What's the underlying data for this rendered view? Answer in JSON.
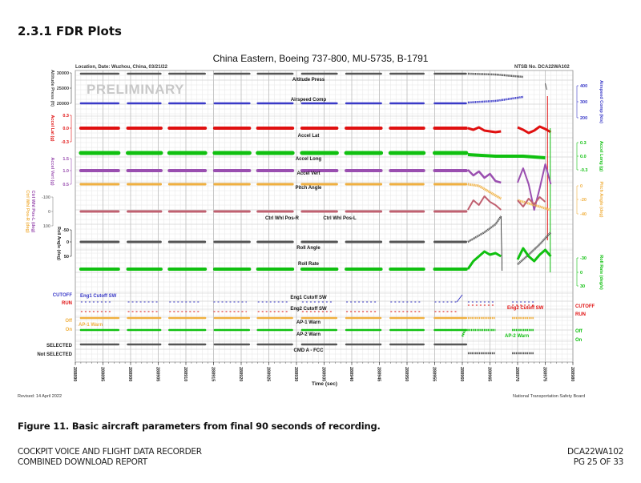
{
  "page": {
    "section_title": "2.3.1  FDR Plots",
    "chart_title": "China Eastern, Boeing 737-800, MU-5735, B-1791",
    "location_date": "Location, Date: Wuzhou, China, 03/21/22",
    "ntsb_number": "NTSB No. DCA22WA102",
    "watermark": "PRELIMINARY",
    "revised": "Revised: 14 April 2022",
    "agency": "National Transportation Safety Board",
    "figure_caption": "Figure 11. Basic aircraft parameters from final 90 seconds of recording.",
    "footer_left_1": "COCKPIT VOICE AND FLIGHT DATA RECORDER",
    "footer_left_2": "COMBINED DOWNLOAD REPORT",
    "footer_right_1": "DCA22WA102",
    "footer_right_2": "PG 25 OF 33"
  },
  "chart_data": {
    "type": "line",
    "title": "China Eastern, Boeing 737-800, MU-5735, B-1791",
    "xlabel": "Time (sec)",
    "xlim": [
      288890,
      288980
    ],
    "x_ticks": [
      288890,
      288895,
      288900,
      288905,
      288910,
      288915,
      288920,
      288925,
      288930,
      288935,
      288940,
      288945,
      288950,
      288955,
      288960,
      288965,
      288970,
      288975,
      288980
    ],
    "grid": true,
    "series": [
      {
        "name": "Altitude Press",
        "axis_label": "Altitude Press (ft)",
        "color": "#555555",
        "ticks": [
          20000,
          25000,
          30000
        ],
        "approx": "~29100 ft steady until 288955, gradual descent from ~288961, sharp drop near 288975"
      },
      {
        "name": "Airspeed Comp",
        "axis_label": "Airspeed Comp (kts)",
        "color": "#3a3ac8",
        "ticks": [
          200,
          300,
          400
        ],
        "approx": "~270 kts steady, rising to ~320 kts by 288971, ~400 kts near 288975"
      },
      {
        "name": "Accel Lat",
        "axis_label": "Accel Lat (g)",
        "color": "#e01010",
        "ticks": [
          -0.3,
          0.0,
          0.3
        ],
        "approx": "0.0 g steady, small oscillations after 288960"
      },
      {
        "name": "Accel Long",
        "axis_label": "Accel Long (g)",
        "color": "#10c010",
        "ticks": [
          -0.3,
          0.0,
          0.3
        ],
        "approx": "~0.0 g steady"
      },
      {
        "name": "Accel Vert",
        "axis_label": "Accel Vert (g)",
        "color": "#9a4fb0",
        "ticks": [
          0.5,
          1.0,
          1.5
        ],
        "approx": "1.0 g steady, large excursions after 288960"
      },
      {
        "name": "Pitch Angle",
        "axis_label": "Pitch Angle (deg)",
        "color": "#f0b040",
        "ticks": [
          -40,
          -20,
          0
        ],
        "approx": "~2 deg steady, decreasing to ~-30 deg by 288973"
      },
      {
        "name": "Ctrl Whl Pos-R",
        "axis_label": "Ctrl Whl Pos-R (deg)",
        "color": "#f0b040",
        "ticks": [
          -100,
          0,
          100
        ]
      },
      {
        "name": "Ctrl Whl Pos-L",
        "axis_label": "Ctrl Whl Pos-L (deg)",
        "color": "#c06070",
        "ticks": [
          -100,
          0,
          100
        ],
        "approx": "~0 deg steady, oscillating after 288960"
      },
      {
        "name": "Roll Angle",
        "axis_label": "Roll Angle (deg)",
        "color": "#555555",
        "ticks": [
          -50,
          0,
          50
        ],
        "approx": "0 deg steady, rolling to ~-50 deg by 288966, again after 288970"
      },
      {
        "name": "Roll Rate",
        "axis_label": "Roll Rate (deg/s)",
        "color": "#10c010",
        "ticks": [
          -30,
          0,
          30
        ],
        "approx": "0 steady, ~-20 after 288962"
      },
      {
        "name": "Eng1 Cutoff SW",
        "axis_label": "CUTOFF / RUN",
        "color": "#3a3ac8",
        "states": [
          "CUTOFF",
          "RUN"
        ],
        "approx": "RUN throughout; brief transition near 288959"
      },
      {
        "name": "Eng2 Cutoff SW",
        "axis_label": "CUTOFF / RUN",
        "color": "#e01010",
        "states": [
          "CUTOFF",
          "RUN"
        ],
        "approx": "RUN throughout"
      },
      {
        "name": "AP-1 Warn",
        "axis_label": "Off / On",
        "color": "#f0b040",
        "states": [
          "Off",
          "On"
        ],
        "approx": "Off throughout"
      },
      {
        "name": "AP-2 Warn",
        "axis_label": "Off / On",
        "color": "#10c010",
        "states": [
          "Off",
          "On"
        ],
        "approx": "Off throughout; On briefly at 288960"
      },
      {
        "name": "CMD A - FCC",
        "axis_label": "SELECTED / Not SELECTED",
        "color": "#555555",
        "states": [
          "SELECTED",
          "Not SELECTED"
        ],
        "approx": "SELECTED until 288960, Not SELECTED after"
      }
    ],
    "left_axis_labels": [
      "Altitude Press (ft)",
      "Accel Lat (g)",
      "Accel Vert (g)",
      "Ctrl Whl Pos-L (deg)",
      "Ctrl Whl Pos-R (deg)",
      "Roll Angle (deg)"
    ],
    "right_axis_labels": [
      "Airspeed Comp (kts)",
      "Accel Long (g)",
      "Pitch Angle (deg)",
      "Roll Rate (deg/s)"
    ],
    "left_state_labels": {
      "eng": [
        "CUTOFF",
        "RUN"
      ],
      "ap": [
        "Off",
        "On"
      ],
      "cmd": [
        "SELECTED",
        "Not SELECTED"
      ]
    },
    "right_state_labels": {
      "eng": [
        "CUTOFF",
        "RUN"
      ],
      "ap": [
        "Off",
        "On"
      ]
    },
    "annotations": [
      "Altitude Press",
      "Airspeed Comp",
      "Accel Lat",
      "Accel Long",
      "Accel Vert",
      "Pitch Angle",
      "Ctrl Whl Pos-R",
      "Ctrl Whl Pos-L",
      "Roll Angle",
      "Roll Rate",
      "Eng1 Cutoff SW",
      "Eng2 Cutoff SW",
      "AP-1 Warn",
      "AP-2 Warn",
      "CMD A - FCC",
      "PRELIMINARY"
    ]
  }
}
